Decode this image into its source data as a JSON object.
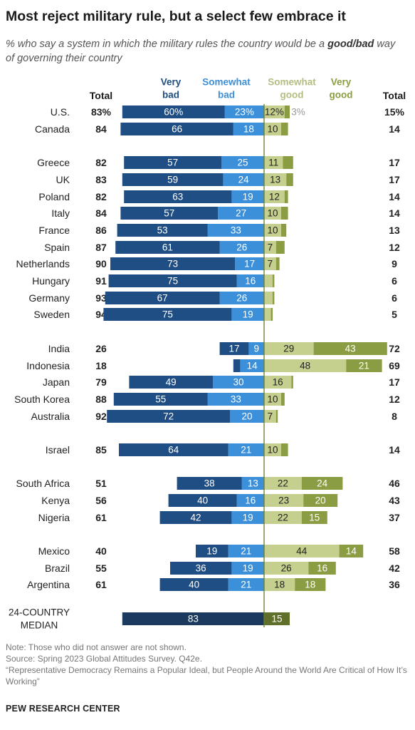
{
  "title": "Most reject military rule, but a select few embrace it",
  "subtitle_pre": "% who say a system in which the military rules the country would be a ",
  "subtitle_bold": "good/bad",
  "subtitle_post": " way of governing their country",
  "notes": {
    "note": "Note: Those who did not answer are not shown.",
    "source": "Source: Spring 2023 Global Attitudes Survey. Q42e.",
    "report": "“Representative Democracy Remains a Popular Ideal, but People Around the World Are Critical of How It’s Working”"
  },
  "org": "PEW RESEARCH CENTER",
  "colors": {
    "very_bad": "#1f4e84",
    "somewhat_bad": "#3c8fd9",
    "somewhat_good": "#c5cf8e",
    "very_good": "#8b9d42",
    "median_bad": "#1b3a5e",
    "median_good": "#60702a",
    "axis": "#6b7a2a",
    "header_bad": "#1f4e84",
    "header_sbad": "#3c8fd9",
    "header_sgood": "#b5bd80",
    "header_vgood": "#8b9d42"
  },
  "chart_data": {
    "type": "bar",
    "stacked": "diverging",
    "headers": {
      "total_left": "Total",
      "very_bad": [
        "Very",
        "bad"
      ],
      "somewhat_bad": [
        "Somewhat",
        "bad"
      ],
      "somewhat_good": [
        "Somewhat",
        "good"
      ],
      "very_good": [
        "Very",
        "good"
      ],
      "total_right": "Total"
    },
    "rows": [
      {
        "country": "U.S.",
        "very_bad": 60,
        "somewhat_bad": 23,
        "somewhat_good": 12,
        "very_good": 3,
        "total_bad": 83,
        "total_good": 15,
        "pct": true
      },
      {
        "country": "Canada",
        "very_bad": 66,
        "somewhat_bad": 18,
        "somewhat_good": 10,
        "very_good": 4,
        "total_bad": 84,
        "total_good": 14
      },
      {
        "country": "Greece",
        "very_bad": 57,
        "somewhat_bad": 25,
        "somewhat_good": 11,
        "very_good": 6,
        "total_bad": 82,
        "total_good": 17
      },
      {
        "country": "UK",
        "very_bad": 59,
        "somewhat_bad": 24,
        "somewhat_good": 13,
        "very_good": 4,
        "total_bad": 83,
        "total_good": 17
      },
      {
        "country": "Poland",
        "very_bad": 63,
        "somewhat_bad": 19,
        "somewhat_good": 12,
        "very_good": 2,
        "total_bad": 82,
        "total_good": 14
      },
      {
        "country": "Italy",
        "very_bad": 57,
        "somewhat_bad": 27,
        "somewhat_good": 10,
        "very_good": 4,
        "total_bad": 84,
        "total_good": 14
      },
      {
        "country": "France",
        "very_bad": 53,
        "somewhat_bad": 33,
        "somewhat_good": 10,
        "very_good": 3,
        "total_bad": 86,
        "total_good": 13
      },
      {
        "country": "Spain",
        "very_bad": 61,
        "somewhat_bad": 26,
        "somewhat_good": 7,
        "very_good": 5,
        "total_bad": 87,
        "total_good": 12
      },
      {
        "country": "Netherlands",
        "very_bad": 73,
        "somewhat_bad": 17,
        "somewhat_good": 7,
        "very_good": 2,
        "total_bad": 90,
        "total_good": 9
      },
      {
        "country": "Hungary",
        "very_bad": 75,
        "somewhat_bad": 16,
        "somewhat_good": 5,
        "very_good": 1,
        "total_bad": 91,
        "total_good": 6
      },
      {
        "country": "Germany",
        "very_bad": 67,
        "somewhat_bad": 26,
        "somewhat_good": 5,
        "very_good": 1,
        "total_bad": 93,
        "total_good": 6
      },
      {
        "country": "Sweden",
        "very_bad": 75,
        "somewhat_bad": 19,
        "somewhat_good": 4,
        "very_good": 1,
        "total_bad": 94,
        "total_good": 5
      },
      {
        "country": "India",
        "very_bad": 17,
        "somewhat_bad": 9,
        "somewhat_good": 29,
        "very_good": 43,
        "total_bad": 26,
        "total_good": 72
      },
      {
        "country": "Indonesia",
        "very_bad": 4,
        "somewhat_bad": 14,
        "somewhat_good": 48,
        "very_good": 21,
        "total_bad": 18,
        "total_good": 69
      },
      {
        "country": "Japan",
        "very_bad": 49,
        "somewhat_bad": 30,
        "somewhat_good": 16,
        "very_good": 1,
        "total_bad": 79,
        "total_good": 17
      },
      {
        "country": "South Korea",
        "very_bad": 55,
        "somewhat_bad": 33,
        "somewhat_good": 10,
        "very_good": 2,
        "total_bad": 88,
        "total_good": 12
      },
      {
        "country": "Australia",
        "very_bad": 72,
        "somewhat_bad": 20,
        "somewhat_good": 7,
        "very_good": 1,
        "total_bad": 92,
        "total_good": 8
      },
      {
        "country": "Israel",
        "very_bad": 64,
        "somewhat_bad": 21,
        "somewhat_good": 10,
        "very_good": 4,
        "total_bad": 85,
        "total_good": 14
      },
      {
        "country": "South Africa",
        "very_bad": 38,
        "somewhat_bad": 13,
        "somewhat_good": 22,
        "very_good": 24,
        "total_bad": 51,
        "total_good": 46
      },
      {
        "country": "Kenya",
        "very_bad": 40,
        "somewhat_bad": 16,
        "somewhat_good": 23,
        "very_good": 20,
        "total_bad": 56,
        "total_good": 43
      },
      {
        "country": "Nigeria",
        "very_bad": 42,
        "somewhat_bad": 19,
        "somewhat_good": 22,
        "very_good": 15,
        "total_bad": 61,
        "total_good": 37
      },
      {
        "country": "Mexico",
        "very_bad": 19,
        "somewhat_bad": 21,
        "somewhat_good": 44,
        "very_good": 14,
        "total_bad": 40,
        "total_good": 58
      },
      {
        "country": "Brazil",
        "very_bad": 36,
        "somewhat_bad": 19,
        "somewhat_good": 26,
        "very_good": 16,
        "total_bad": 55,
        "total_good": 42
      },
      {
        "country": "Argentina",
        "very_bad": 40,
        "somewhat_bad": 21,
        "somewhat_good": 18,
        "very_good": 18,
        "total_bad": 61,
        "total_good": 36
      }
    ],
    "median": {
      "country": [
        "24-COUNTRY",
        "MEDIAN"
      ],
      "bad": 83,
      "good": 15,
      "total_bad": "",
      "total_good": ""
    }
  }
}
